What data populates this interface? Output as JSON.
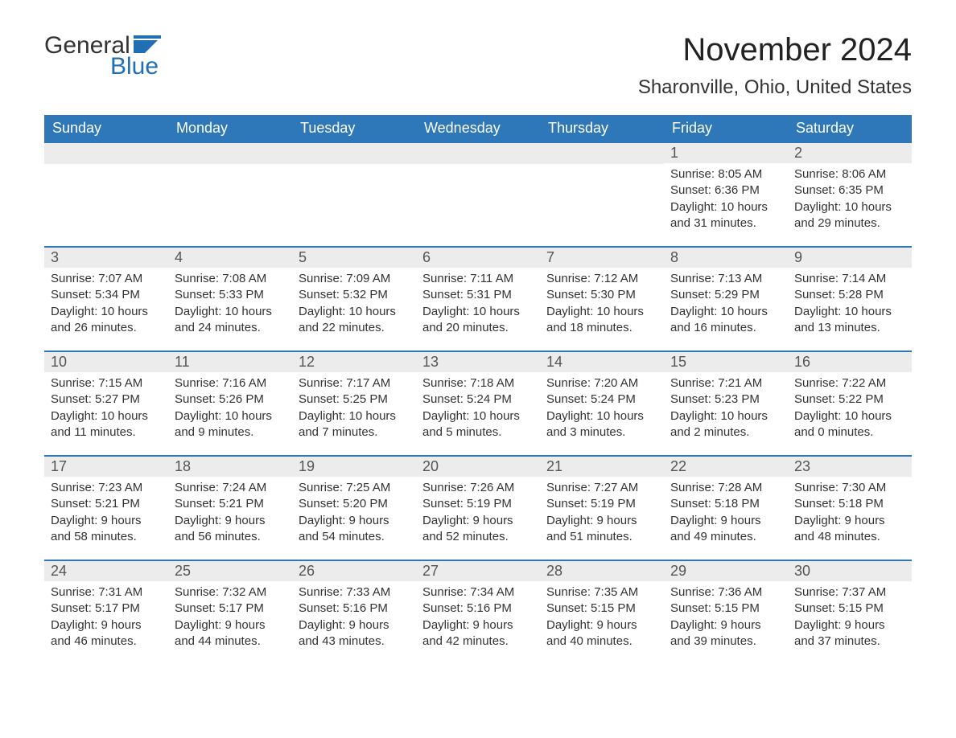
{
  "logo": {
    "text_top": "General",
    "text_bottom": "Blue"
  },
  "title": "November 2024",
  "location": "Sharonville, Ohio, United States",
  "colors": {
    "header_bg": "#2e77b8",
    "header_text": "#ffffff",
    "daynum_bg": "#ececec",
    "border": "#2e77b8",
    "body_text": "#333333",
    "logo_blue": "#1f6fb2"
  },
  "days_of_week": [
    "Sunday",
    "Monday",
    "Tuesday",
    "Wednesday",
    "Thursday",
    "Friday",
    "Saturday"
  ],
  "weeks": [
    [
      {
        "blank": true
      },
      {
        "blank": true
      },
      {
        "blank": true
      },
      {
        "blank": true
      },
      {
        "blank": true
      },
      {
        "num": "1",
        "sunrise": "Sunrise: 8:05 AM",
        "sunset": "Sunset: 6:36 PM",
        "daylight": "Daylight: 10 hours and 31 minutes."
      },
      {
        "num": "2",
        "sunrise": "Sunrise: 8:06 AM",
        "sunset": "Sunset: 6:35 PM",
        "daylight": "Daylight: 10 hours and 29 minutes."
      }
    ],
    [
      {
        "num": "3",
        "sunrise": "Sunrise: 7:07 AM",
        "sunset": "Sunset: 5:34 PM",
        "daylight": "Daylight: 10 hours and 26 minutes."
      },
      {
        "num": "4",
        "sunrise": "Sunrise: 7:08 AM",
        "sunset": "Sunset: 5:33 PM",
        "daylight": "Daylight: 10 hours and 24 minutes."
      },
      {
        "num": "5",
        "sunrise": "Sunrise: 7:09 AM",
        "sunset": "Sunset: 5:32 PM",
        "daylight": "Daylight: 10 hours and 22 minutes."
      },
      {
        "num": "6",
        "sunrise": "Sunrise: 7:11 AM",
        "sunset": "Sunset: 5:31 PM",
        "daylight": "Daylight: 10 hours and 20 minutes."
      },
      {
        "num": "7",
        "sunrise": "Sunrise: 7:12 AM",
        "sunset": "Sunset: 5:30 PM",
        "daylight": "Daylight: 10 hours and 18 minutes."
      },
      {
        "num": "8",
        "sunrise": "Sunrise: 7:13 AM",
        "sunset": "Sunset: 5:29 PM",
        "daylight": "Daylight: 10 hours and 16 minutes."
      },
      {
        "num": "9",
        "sunrise": "Sunrise: 7:14 AM",
        "sunset": "Sunset: 5:28 PM",
        "daylight": "Daylight: 10 hours and 13 minutes."
      }
    ],
    [
      {
        "num": "10",
        "sunrise": "Sunrise: 7:15 AM",
        "sunset": "Sunset: 5:27 PM",
        "daylight": "Daylight: 10 hours and 11 minutes."
      },
      {
        "num": "11",
        "sunrise": "Sunrise: 7:16 AM",
        "sunset": "Sunset: 5:26 PM",
        "daylight": "Daylight: 10 hours and 9 minutes."
      },
      {
        "num": "12",
        "sunrise": "Sunrise: 7:17 AM",
        "sunset": "Sunset: 5:25 PM",
        "daylight": "Daylight: 10 hours and 7 minutes."
      },
      {
        "num": "13",
        "sunrise": "Sunrise: 7:18 AM",
        "sunset": "Sunset: 5:24 PM",
        "daylight": "Daylight: 10 hours and 5 minutes."
      },
      {
        "num": "14",
        "sunrise": "Sunrise: 7:20 AM",
        "sunset": "Sunset: 5:24 PM",
        "daylight": "Daylight: 10 hours and 3 minutes."
      },
      {
        "num": "15",
        "sunrise": "Sunrise: 7:21 AM",
        "sunset": "Sunset: 5:23 PM",
        "daylight": "Daylight: 10 hours and 2 minutes."
      },
      {
        "num": "16",
        "sunrise": "Sunrise: 7:22 AM",
        "sunset": "Sunset: 5:22 PM",
        "daylight": "Daylight: 10 hours and 0 minutes."
      }
    ],
    [
      {
        "num": "17",
        "sunrise": "Sunrise: 7:23 AM",
        "sunset": "Sunset: 5:21 PM",
        "daylight": "Daylight: 9 hours and 58 minutes."
      },
      {
        "num": "18",
        "sunrise": "Sunrise: 7:24 AM",
        "sunset": "Sunset: 5:21 PM",
        "daylight": "Daylight: 9 hours and 56 minutes."
      },
      {
        "num": "19",
        "sunrise": "Sunrise: 7:25 AM",
        "sunset": "Sunset: 5:20 PM",
        "daylight": "Daylight: 9 hours and 54 minutes."
      },
      {
        "num": "20",
        "sunrise": "Sunrise: 7:26 AM",
        "sunset": "Sunset: 5:19 PM",
        "daylight": "Daylight: 9 hours and 52 minutes."
      },
      {
        "num": "21",
        "sunrise": "Sunrise: 7:27 AM",
        "sunset": "Sunset: 5:19 PM",
        "daylight": "Daylight: 9 hours and 51 minutes."
      },
      {
        "num": "22",
        "sunrise": "Sunrise: 7:28 AM",
        "sunset": "Sunset: 5:18 PM",
        "daylight": "Daylight: 9 hours and 49 minutes."
      },
      {
        "num": "23",
        "sunrise": "Sunrise: 7:30 AM",
        "sunset": "Sunset: 5:18 PM",
        "daylight": "Daylight: 9 hours and 48 minutes."
      }
    ],
    [
      {
        "num": "24",
        "sunrise": "Sunrise: 7:31 AM",
        "sunset": "Sunset: 5:17 PM",
        "daylight": "Daylight: 9 hours and 46 minutes."
      },
      {
        "num": "25",
        "sunrise": "Sunrise: 7:32 AM",
        "sunset": "Sunset: 5:17 PM",
        "daylight": "Daylight: 9 hours and 44 minutes."
      },
      {
        "num": "26",
        "sunrise": "Sunrise: 7:33 AM",
        "sunset": "Sunset: 5:16 PM",
        "daylight": "Daylight: 9 hours and 43 minutes."
      },
      {
        "num": "27",
        "sunrise": "Sunrise: 7:34 AM",
        "sunset": "Sunset: 5:16 PM",
        "daylight": "Daylight: 9 hours and 42 minutes."
      },
      {
        "num": "28",
        "sunrise": "Sunrise: 7:35 AM",
        "sunset": "Sunset: 5:15 PM",
        "daylight": "Daylight: 9 hours and 40 minutes."
      },
      {
        "num": "29",
        "sunrise": "Sunrise: 7:36 AM",
        "sunset": "Sunset: 5:15 PM",
        "daylight": "Daylight: 9 hours and 39 minutes."
      },
      {
        "num": "30",
        "sunrise": "Sunrise: 7:37 AM",
        "sunset": "Sunset: 5:15 PM",
        "daylight": "Daylight: 9 hours and 37 minutes."
      }
    ]
  ]
}
